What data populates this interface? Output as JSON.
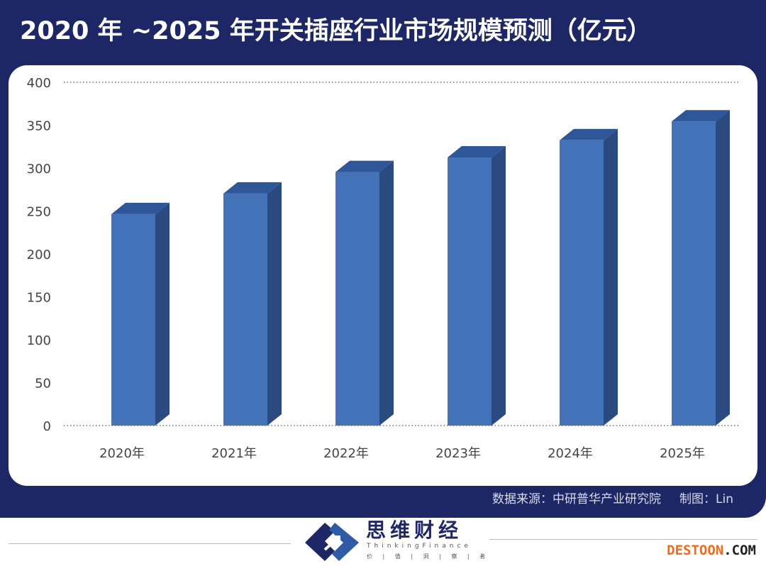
{
  "header": {
    "title": "2020 年 ~2025 年开关插座行业市场规模预测（亿元）"
  },
  "footer": {
    "source": "数据来源：中研普华产业研究院",
    "author": "制图：Lin"
  },
  "branding": {
    "name": "思维财经",
    "name_en": "ThinkingFinance",
    "slogan": "价 | 值 | 洞 | 察 | 者",
    "watermark_a": "DESTOON",
    "watermark_b": ".COM"
  },
  "colors": {
    "frame": "#1e2766",
    "bar_front": "#4472b8",
    "bar_side": "#2b4a80",
    "bar_top": "#30569a"
  },
  "chart_data": {
    "type": "bar",
    "title": "2020 年 ~2025 年开关插座行业市场规模预测（亿元）",
    "categories": [
      "2020年",
      "2021年",
      "2022年",
      "2023年",
      "2024年",
      "2025年"
    ],
    "values": [
      253,
      277,
      302,
      319,
      339,
      361
    ],
    "yticks": [
      "0",
      "50",
      "100",
      "150",
      "200",
      "250",
      "300",
      "350",
      "400"
    ],
    "ylim": [
      0,
      400
    ],
    "xlabel": "",
    "ylabel": "",
    "grid": "dotted at 0 and 400",
    "legend": "none",
    "style": "3d-column"
  }
}
